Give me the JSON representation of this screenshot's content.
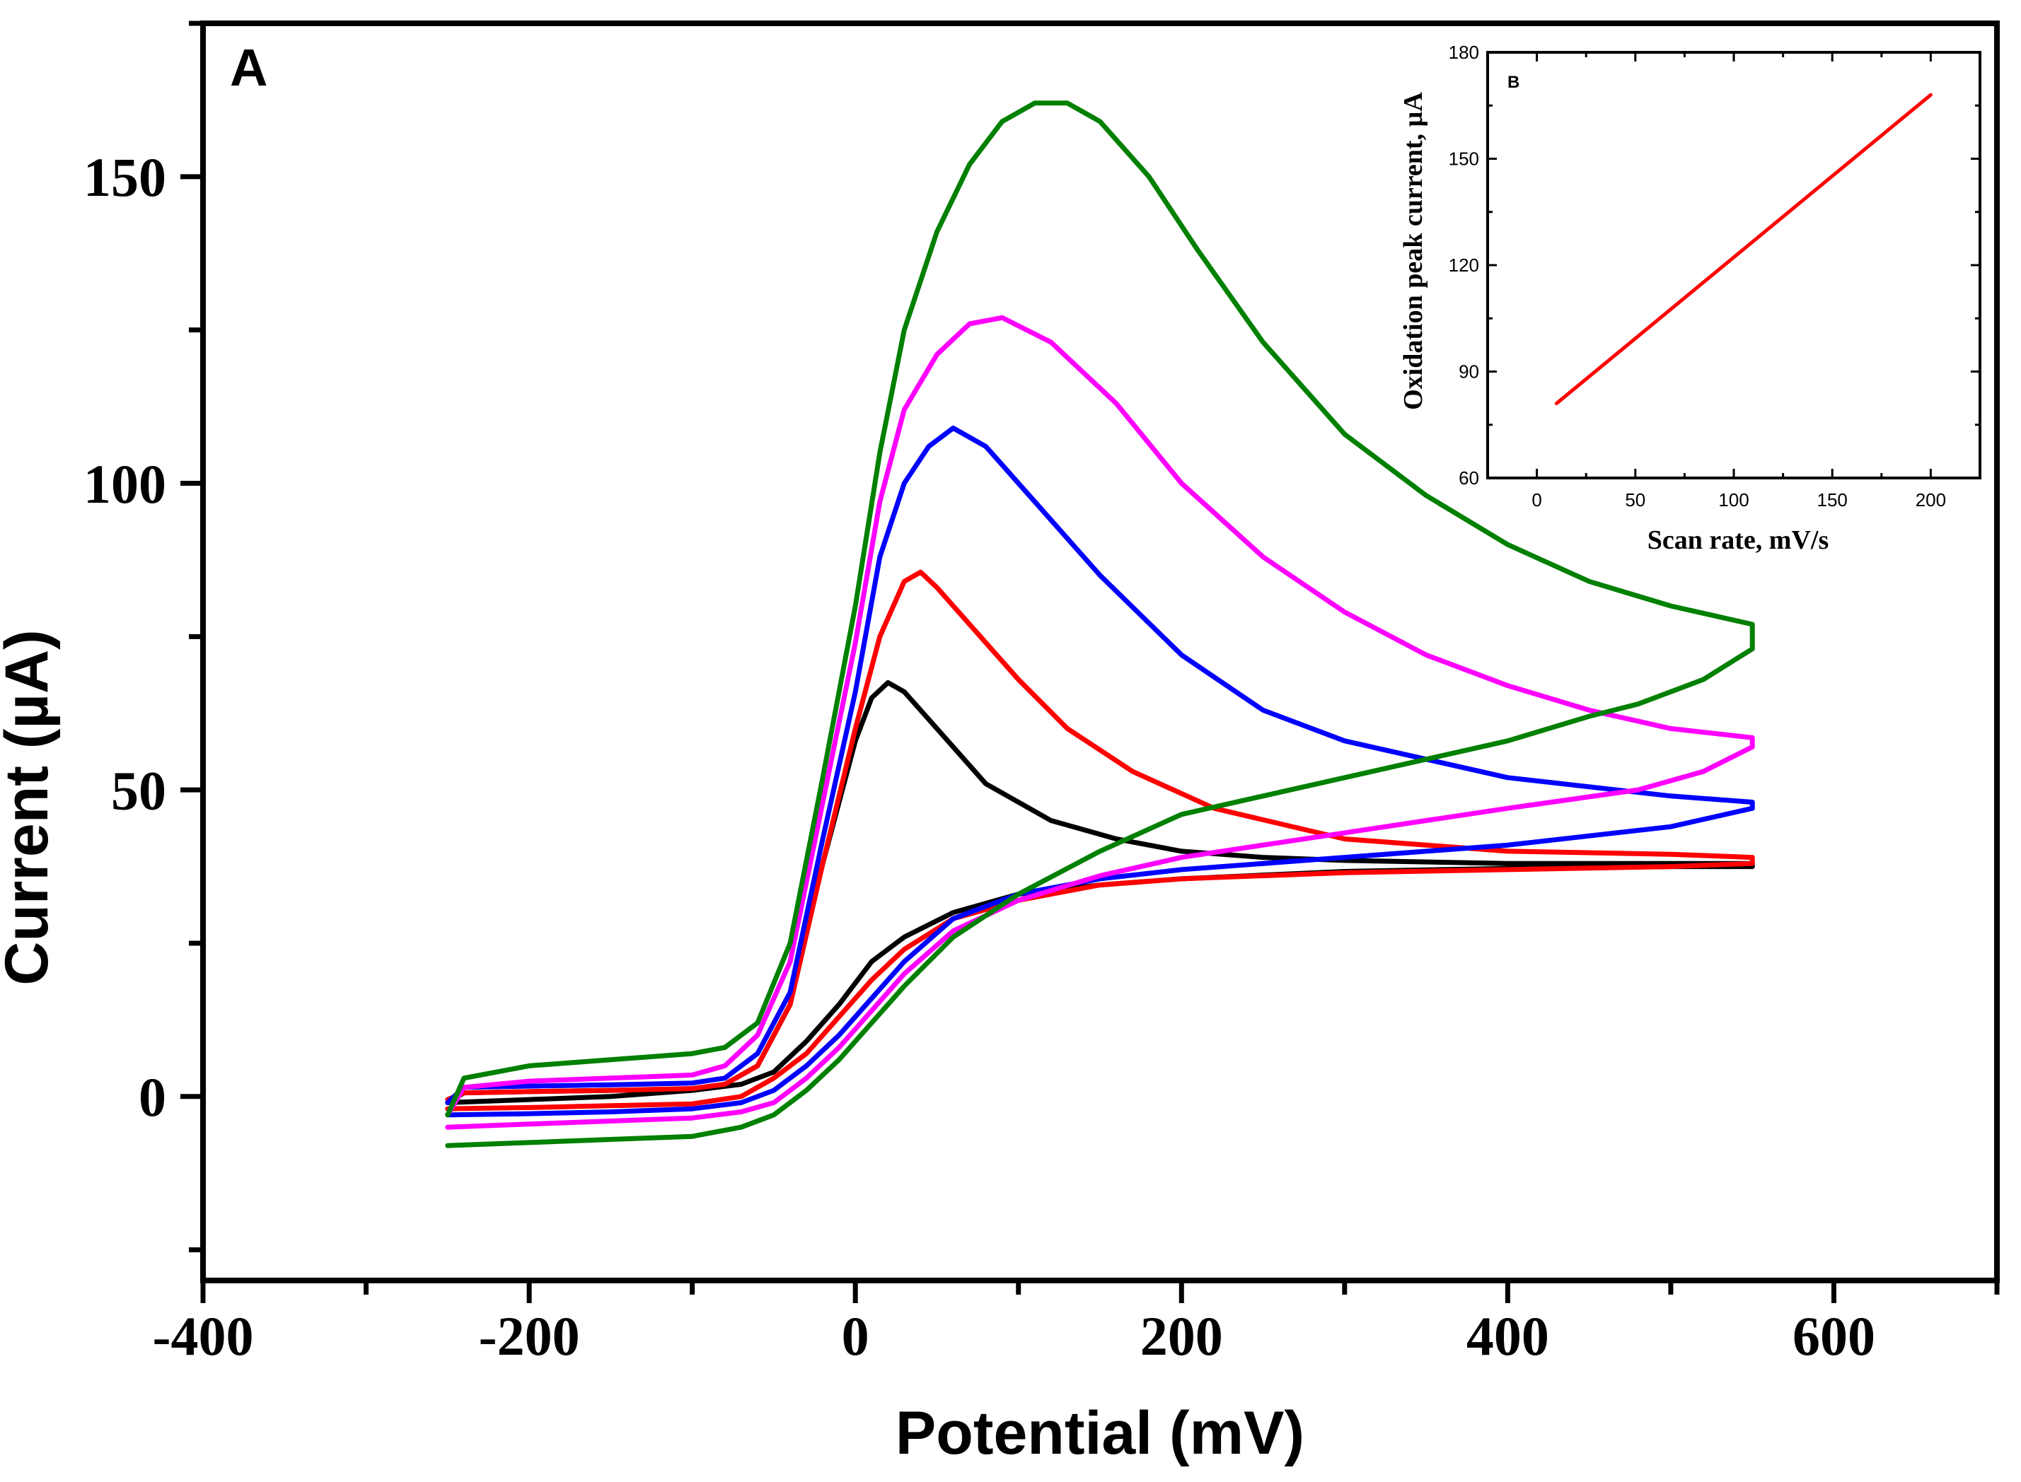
{
  "chart_data": [
    {
      "panel": "A",
      "type": "line",
      "title": "",
      "panel_label": "A",
      "xlabel": "Potential (mV)",
      "ylabel": "Current (µA)",
      "xlim": [
        -400,
        700
      ],
      "ylim": [
        -30,
        175
      ],
      "x_ticks": [
        -400,
        -200,
        0,
        200,
        400,
        600
      ],
      "x_tick_labels": [
        "-400",
        "-200",
        "0",
        "200",
        "400",
        "600"
      ],
      "y_ticks": [
        0,
        50,
        100,
        150
      ],
      "y_tick_labels": [
        "0",
        "50",
        "100",
        "150"
      ],
      "grid": false,
      "legend": "none",
      "series": [
        {
          "name": "cv-black",
          "color": "#000000",
          "points": [
            [
              -250,
              -1
            ],
            [
              -240,
              0.6
            ],
            [
              -200,
              0.8
            ],
            [
              -150,
              1
            ],
            [
              -100,
              1.2
            ],
            [
              -80,
              2
            ],
            [
              -60,
              5
            ],
            [
              -40,
              15
            ],
            [
              -20,
              38
            ],
            [
              0,
              58
            ],
            [
              10,
              65
            ],
            [
              20,
              67.5
            ],
            [
              30,
              66
            ],
            [
              50,
              60
            ],
            [
              80,
              51
            ],
            [
              120,
              45
            ],
            [
              160,
              42
            ],
            [
              200,
              40
            ],
            [
              250,
              39
            ],
            [
              300,
              38.5
            ],
            [
              400,
              38
            ],
            [
              550,
              38
            ],
            [
              550,
              37.5
            ],
            [
              500,
              37.5
            ],
            [
              400,
              37.2
            ],
            [
              300,
              36.7
            ],
            [
              200,
              35.5
            ],
            [
              150,
              34.5
            ],
            [
              100,
              33
            ],
            [
              60,
              30
            ],
            [
              30,
              26
            ],
            [
              10,
              22
            ],
            [
              -10,
              15
            ],
            [
              -30,
              9
            ],
            [
              -50,
              4
            ],
            [
              -70,
              2
            ],
            [
              -100,
              1
            ],
            [
              -150,
              0
            ],
            [
              -200,
              -0.5
            ],
            [
              -250,
              -1
            ]
          ]
        },
        {
          "name": "cv-red",
          "color": "#ff0000",
          "points": [
            [
              -250,
              -0.5
            ],
            [
              -240,
              0.6
            ],
            [
              -200,
              0.8
            ],
            [
              -150,
              1
            ],
            [
              -100,
              1.3
            ],
            [
              -80,
              2
            ],
            [
              -60,
              5
            ],
            [
              -40,
              15
            ],
            [
              -20,
              38
            ],
            [
              0,
              60
            ],
            [
              15,
              75
            ],
            [
              30,
              84
            ],
            [
              40,
              85.5
            ],
            [
              50,
              83
            ],
            [
              70,
              77
            ],
            [
              100,
              68
            ],
            [
              130,
              60
            ],
            [
              170,
              53
            ],
            [
              220,
              47
            ],
            [
              300,
              42
            ],
            [
              400,
              40
            ],
            [
              500,
              39.5
            ],
            [
              550,
              39
            ],
            [
              550,
              38
            ],
            [
              500,
              37.5
            ],
            [
              400,
              37
            ],
            [
              300,
              36.5
            ],
            [
              200,
              35.5
            ],
            [
              150,
              34.5
            ],
            [
              100,
              32
            ],
            [
              60,
              29
            ],
            [
              30,
              24
            ],
            [
              10,
              19
            ],
            [
              -10,
              13
            ],
            [
              -30,
              7
            ],
            [
              -50,
              3
            ],
            [
              -70,
              0
            ],
            [
              -100,
              -1.2
            ],
            [
              -150,
              -1.5
            ],
            [
              -200,
              -1.8
            ],
            [
              -250,
              -2
            ]
          ]
        },
        {
          "name": "cv-blue",
          "color": "#0000ff",
          "points": [
            [
              -250,
              -1
            ],
            [
              -240,
              1.5
            ],
            [
              -200,
              1.7
            ],
            [
              -150,
              1.9
            ],
            [
              -100,
              2.2
            ],
            [
              -80,
              3
            ],
            [
              -60,
              7
            ],
            [
              -40,
              17
            ],
            [
              -20,
              42
            ],
            [
              0,
              66
            ],
            [
              15,
              88
            ],
            [
              30,
              100
            ],
            [
              45,
              106
            ],
            [
              60,
              109
            ],
            [
              80,
              106
            ],
            [
              110,
              97
            ],
            [
              150,
              85
            ],
            [
              200,
              72
            ],
            [
              250,
              63
            ],
            [
              300,
              58
            ],
            [
              400,
              52
            ],
            [
              500,
              49
            ],
            [
              550,
              48
            ],
            [
              550,
              47
            ],
            [
              500,
              44
            ],
            [
              400,
              41
            ],
            [
              300,
              39
            ],
            [
              200,
              37
            ],
            [
              150,
              35.5
            ],
            [
              100,
              33
            ],
            [
              60,
              29
            ],
            [
              30,
              22
            ],
            [
              10,
              16
            ],
            [
              -10,
              10
            ],
            [
              -30,
              5
            ],
            [
              -50,
              1
            ],
            [
              -70,
              -1
            ],
            [
              -100,
              -2
            ],
            [
              -150,
              -2.5
            ],
            [
              -200,
              -2.8
            ],
            [
              -250,
              -3
            ]
          ]
        },
        {
          "name": "cv-magenta",
          "color": "#ff00ff",
          "points": [
            [
              -250,
              -3
            ],
            [
              -240,
              1.5
            ],
            [
              -200,
              2.5
            ],
            [
              -150,
              3
            ],
            [
              -100,
              3.5
            ],
            [
              -80,
              5
            ],
            [
              -60,
              10
            ],
            [
              -40,
              22
            ],
            [
              -20,
              48
            ],
            [
              0,
              74
            ],
            [
              15,
              97
            ],
            [
              30,
              112
            ],
            [
              50,
              121
            ],
            [
              70,
              126
            ],
            [
              90,
              127
            ],
            [
              120,
              123
            ],
            [
              160,
              113
            ],
            [
              200,
              100
            ],
            [
              250,
              88
            ],
            [
              300,
              79
            ],
            [
              350,
              72
            ],
            [
              400,
              67
            ],
            [
              450,
              63
            ],
            [
              500,
              60
            ],
            [
              550,
              58.5
            ],
            [
              550,
              57
            ],
            [
              520,
              53
            ],
            [
              480,
              50
            ],
            [
              400,
              47
            ],
            [
              350,
              45
            ],
            [
              300,
              43
            ],
            [
              250,
              41
            ],
            [
              200,
              39
            ],
            [
              150,
              36
            ],
            [
              100,
              32
            ],
            [
              60,
              27
            ],
            [
              30,
              20
            ],
            [
              10,
              14
            ],
            [
              -10,
              8
            ],
            [
              -30,
              3
            ],
            [
              -50,
              -1
            ],
            [
              -70,
              -2.5
            ],
            [
              -100,
              -3.5
            ],
            [
              -150,
              -4
            ],
            [
              -200,
              -4.5
            ],
            [
              -250,
              -5
            ]
          ]
        },
        {
          "name": "cv-green",
          "color": "#008000",
          "points": [
            [
              -250,
              -3
            ],
            [
              -240,
              3
            ],
            [
              -200,
              5
            ],
            [
              -150,
              6
            ],
            [
              -100,
              7
            ],
            [
              -80,
              8
            ],
            [
              -60,
              12
            ],
            [
              -40,
              25
            ],
            [
              -20,
              52
            ],
            [
              0,
              80
            ],
            [
              15,
              105
            ],
            [
              30,
              125
            ],
            [
              50,
              141
            ],
            [
              70,
              152
            ],
            [
              90,
              159
            ],
            [
              110,
              162
            ],
            [
              130,
              162
            ],
            [
              150,
              159
            ],
            [
              180,
              150
            ],
            [
              210,
              138
            ],
            [
              250,
              123
            ],
            [
              300,
              108
            ],
            [
              350,
              98
            ],
            [
              400,
              90
            ],
            [
              450,
              84
            ],
            [
              500,
              80
            ],
            [
              550,
              77
            ],
            [
              550,
              73
            ],
            [
              520,
              68
            ],
            [
              480,
              64
            ],
            [
              450,
              62
            ],
            [
              400,
              58
            ],
            [
              350,
              55
            ],
            [
              300,
              52
            ],
            [
              250,
              49
            ],
            [
              200,
              46
            ],
            [
              150,
              40
            ],
            [
              100,
              33
            ],
            [
              60,
              26
            ],
            [
              30,
              18
            ],
            [
              10,
              12
            ],
            [
              -10,
              6
            ],
            [
              -30,
              1
            ],
            [
              -50,
              -3
            ],
            [
              -70,
              -5
            ],
            [
              -100,
              -6.5
            ],
            [
              -150,
              -7
            ],
            [
              -200,
              -7.5
            ],
            [
              -250,
              -8
            ]
          ]
        }
      ]
    },
    {
      "panel": "B",
      "type": "line",
      "title": "",
      "panel_label": "B",
      "xlabel": "Scan rate, mV/s",
      "ylabel": "Oxidation peak current,  µA",
      "xlim": [
        -25,
        225
      ],
      "ylim": [
        60,
        180
      ],
      "x_ticks": [
        0,
        50,
        100,
        150,
        200
      ],
      "x_tick_labels": [
        "0",
        "50",
        "100",
        "150",
        "200"
      ],
      "y_ticks": [
        60,
        90,
        120,
        150,
        180
      ],
      "y_tick_labels": [
        "60",
        "90",
        "120",
        "150",
        "180"
      ],
      "grid": false,
      "legend": "none",
      "series": [
        {
          "name": "peak-current-fit",
          "color": "#ff0000",
          "points": [
            [
              10,
              81
            ],
            [
              200,
              168
            ]
          ]
        }
      ]
    }
  ]
}
